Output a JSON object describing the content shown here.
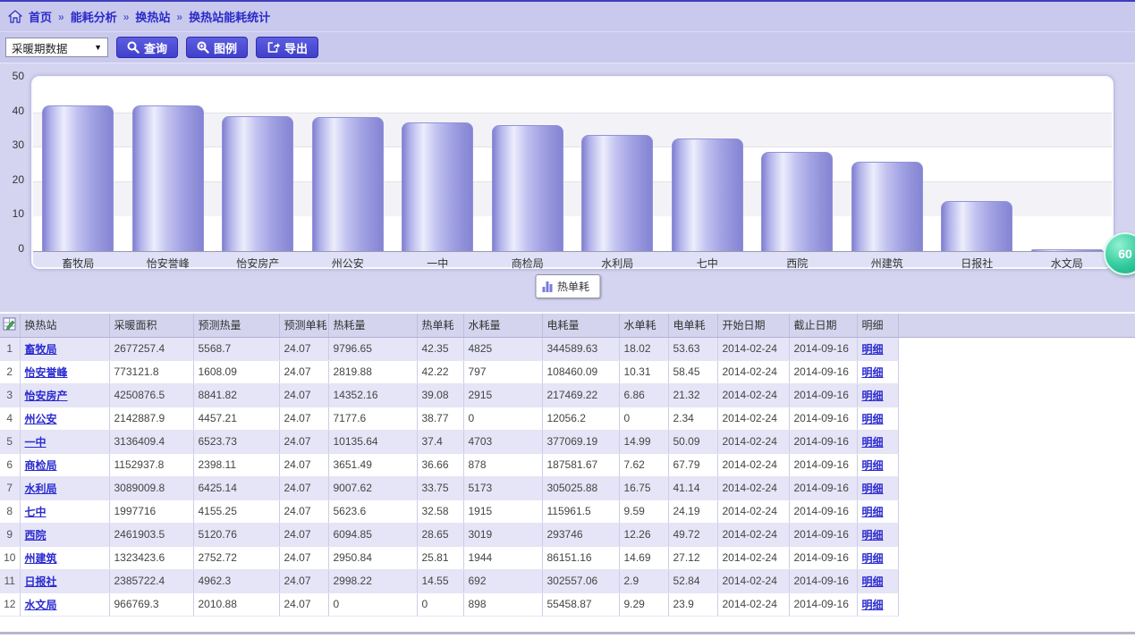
{
  "breadcrumb": {
    "home": "首页",
    "separator": "»",
    "items": [
      "能耗分析",
      "换热站",
      "换热站能耗统计"
    ]
  },
  "toolbar": {
    "period_select_value": "采暖期数据",
    "query_label": "查询",
    "legend_label": "图例",
    "export_label": "导出"
  },
  "chart_data": {
    "type": "bar",
    "title": "",
    "xlabel": "",
    "ylabel": "",
    "ylim": [
      0,
      50
    ],
    "yticks": [
      0,
      10,
      20,
      30,
      40,
      50
    ],
    "grid": true,
    "legend_position": "bottom",
    "bar_color": "#a8a8e8",
    "categories": [
      "畜牧局",
      "怡安誉峰",
      "怡安房产",
      "州公安",
      "一中",
      "商检局",
      "水利局",
      "七中",
      "西院",
      "州建筑",
      "日报社",
      "水文局"
    ],
    "series": [
      {
        "name": "热单耗",
        "values": [
          42.35,
          42.22,
          39.08,
          38.77,
          37.4,
          36.66,
          33.75,
          32.58,
          28.65,
          25.81,
          14.55,
          0
        ]
      }
    ]
  },
  "refresh_badge": "60",
  "table": {
    "headers": [
      "换热站",
      "采暖面积",
      "预测热量",
      "预测单耗",
      "热耗量",
      "热单耗",
      "水耗量",
      "电耗量",
      "水单耗",
      "电单耗",
      "开始日期",
      "截止日期",
      "明细"
    ],
    "detail_label": "明细",
    "rows": [
      {
        "num": "1",
        "station": "畜牧局",
        "cells": [
          "2677257.4",
          "5568.7",
          "24.07",
          "9796.65",
          "42.35",
          "4825",
          "344589.63",
          "18.02",
          "53.63",
          "2014-02-24",
          "2014-09-16"
        ]
      },
      {
        "num": "2",
        "station": "怡安誉峰",
        "cells": [
          "773121.8",
          "1608.09",
          "24.07",
          "2819.88",
          "42.22",
          "797",
          "108460.09",
          "10.31",
          "58.45",
          "2014-02-24",
          "2014-09-16"
        ]
      },
      {
        "num": "3",
        "station": "怡安房产",
        "cells": [
          "4250876.5",
          "8841.82",
          "24.07",
          "14352.16",
          "39.08",
          "2915",
          "217469.22",
          "6.86",
          "21.32",
          "2014-02-24",
          "2014-09-16"
        ]
      },
      {
        "num": "4",
        "station": "州公安",
        "cells": [
          "2142887.9",
          "4457.21",
          "24.07",
          "7177.6",
          "38.77",
          "0",
          "12056.2",
          "0",
          "2.34",
          "2014-02-24",
          "2014-09-16"
        ]
      },
      {
        "num": "5",
        "station": "一中",
        "cells": [
          "3136409.4",
          "6523.73",
          "24.07",
          "10135.64",
          "37.4",
          "4703",
          "377069.19",
          "14.99",
          "50.09",
          "2014-02-24",
          "2014-09-16"
        ]
      },
      {
        "num": "6",
        "station": "商检局",
        "cells": [
          "1152937.8",
          "2398.11",
          "24.07",
          "3651.49",
          "36.66",
          "878",
          "187581.67",
          "7.62",
          "67.79",
          "2014-02-24",
          "2014-09-16"
        ]
      },
      {
        "num": "7",
        "station": "水利局",
        "cells": [
          "3089009.8",
          "6425.14",
          "24.07",
          "9007.62",
          "33.75",
          "5173",
          "305025.88",
          "16.75",
          "41.14",
          "2014-02-24",
          "2014-09-16"
        ]
      },
      {
        "num": "8",
        "station": "七中",
        "cells": [
          "1997716",
          "4155.25",
          "24.07",
          "5623.6",
          "32.58",
          "1915",
          "115961.5",
          "9.59",
          "24.19",
          "2014-02-24",
          "2014-09-16"
        ]
      },
      {
        "num": "9",
        "station": "西院",
        "cells": [
          "2461903.5",
          "5120.76",
          "24.07",
          "6094.85",
          "28.65",
          "3019",
          "293746",
          "12.26",
          "49.72",
          "2014-02-24",
          "2014-09-16"
        ]
      },
      {
        "num": "10",
        "station": "州建筑",
        "cells": [
          "1323423.6",
          "2752.72",
          "24.07",
          "2950.84",
          "25.81",
          "1944",
          "86151.16",
          "14.69",
          "27.12",
          "2014-02-24",
          "2014-09-16"
        ]
      },
      {
        "num": "11",
        "station": "日报社",
        "cells": [
          "2385722.4",
          "4962.3",
          "24.07",
          "2998.22",
          "14.55",
          "692",
          "302557.06",
          "2.9",
          "52.84",
          "2014-02-24",
          "2014-09-16"
        ]
      },
      {
        "num": "12",
        "station": "水文局",
        "cells": [
          "966769.3",
          "2010.88",
          "24.07",
          "0",
          "0",
          "898",
          "55458.87",
          "9.29",
          "23.9",
          "2014-02-24",
          "2014-09-16"
        ]
      }
    ]
  },
  "colors": {
    "accent_blue": "#4040cb",
    "breadcrumb_text": "#2a2ac8",
    "bar_fill": "#a8a8e8",
    "badge_green": "#32cb9d",
    "header_bg": "#d4d4ee",
    "row_alt_bg": "#e5e5f7",
    "link": "#2a2ad0"
  }
}
